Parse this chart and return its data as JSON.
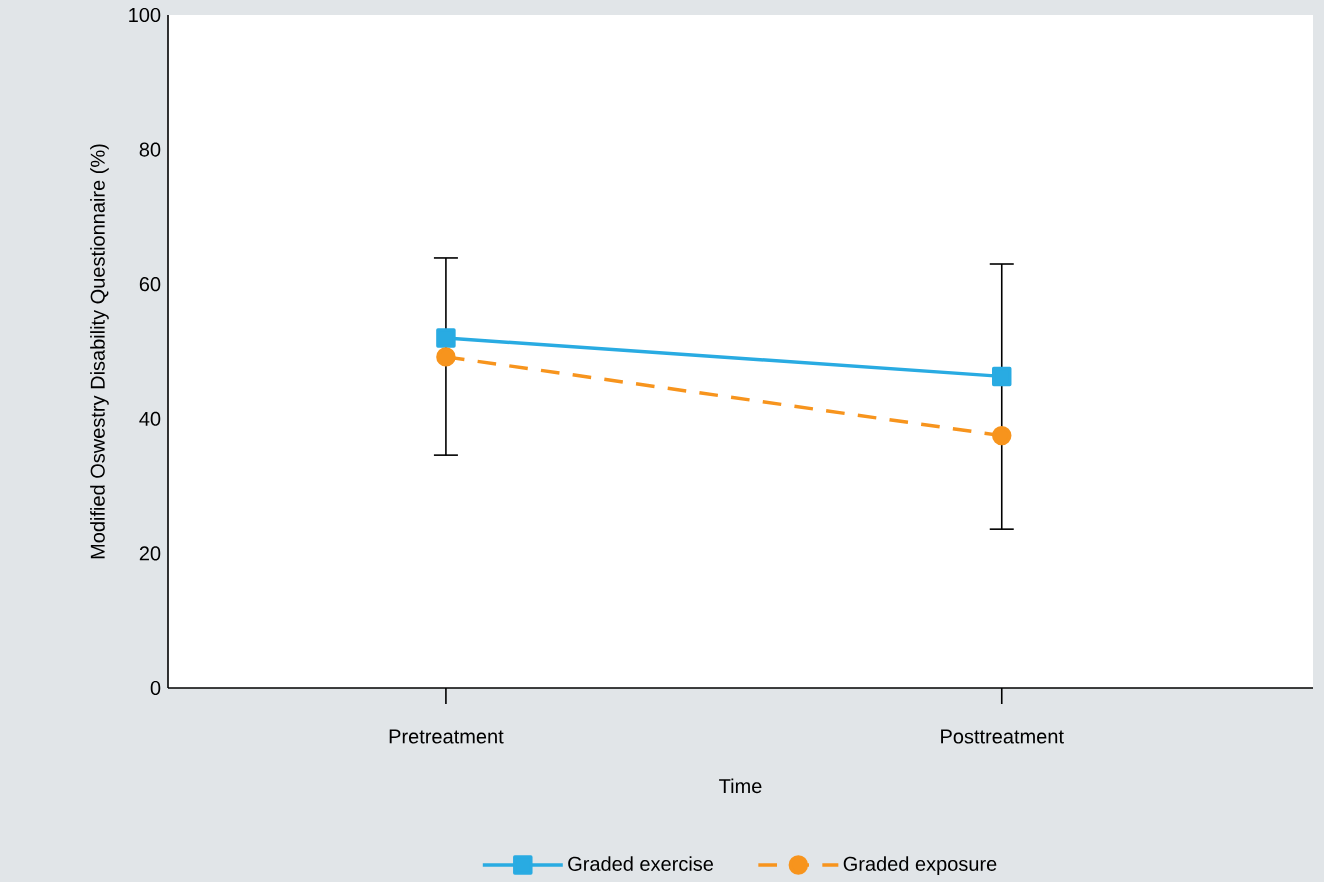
{
  "chart_data": {
    "type": "line",
    "xlabel": "Time",
    "ylabel": "Modified Oswestry Disability Questionnaire (%)",
    "categories": [
      "Pretreatment",
      "Posttreatment"
    ],
    "ylim": [
      0,
      100
    ],
    "yticks": [
      0,
      20,
      40,
      60,
      80,
      100
    ],
    "grid": false,
    "legend": "bottom",
    "series": [
      {
        "name": "Graded exercise",
        "color": "#29abe2",
        "values": [
          52.0,
          46.3
        ],
        "marker": "square",
        "line_style": "solid",
        "errors": [
          [
            34.6,
            63.9
          ],
          [
            23.6,
            63.0
          ]
        ]
      },
      {
        "name": "Graded exposure",
        "color": "#f7941d",
        "values": [
          49.2,
          37.5
        ],
        "marker": "circle",
        "line_style": "dashed"
      }
    ]
  }
}
